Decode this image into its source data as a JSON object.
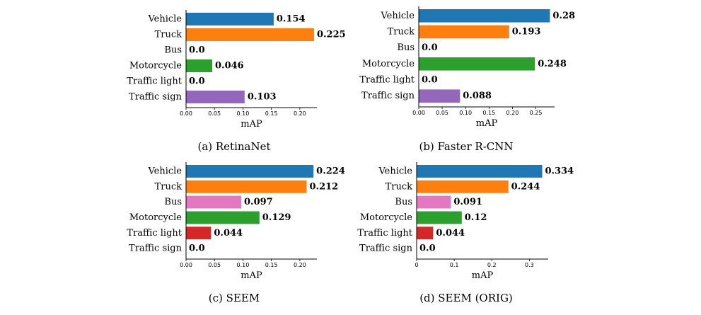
{
  "colors": {
    "vehicle": "#1f77b4",
    "truck": "#ff7f0e",
    "bus": "#e377c2",
    "motorcycle": "#2ca02c",
    "traffic_light": "#d62728",
    "traffic_sign": "#9467bd"
  },
  "chart_data": [
    {
      "type": "bar",
      "orientation": "horizontal",
      "caption": "(a) RetinaNet",
      "categories": [
        "Vehicle",
        "Truck",
        "Bus",
        "Motorcycle",
        "Traffic light",
        "Traffic sign"
      ],
      "values": [
        0.154,
        0.225,
        0.0,
        0.046,
        0.0,
        0.103
      ],
      "value_labels": [
        "0.154",
        "0.225",
        "0.0",
        "0.046",
        "0.0",
        "0.103"
      ],
      "xlabel": "mAP",
      "xlim": [
        0,
        0.23
      ],
      "xticks": [
        0.0,
        0.05,
        0.1,
        0.15,
        0.2
      ],
      "xtick_labels": [
        "0.00",
        "0.05",
        "0.10",
        "0.15",
        "0.20"
      ],
      "grid": false
    },
    {
      "type": "bar",
      "orientation": "horizontal",
      "caption": "(b) Faster R-CNN",
      "categories": [
        "Vehicle",
        "Truck",
        "Bus",
        "Motorcycle",
        "Traffic light",
        "Traffic sign"
      ],
      "values": [
        0.28,
        0.193,
        0.0,
        0.248,
        0.0,
        0.088
      ],
      "value_labels": [
        "0.28",
        "0.193",
        "0.0",
        "0.248",
        "0.0",
        "0.088"
      ],
      "xlabel": "mAP",
      "xlim": [
        0,
        0.29
      ],
      "xticks": [
        0.0,
        0.05,
        0.1,
        0.15,
        0.2,
        0.25
      ],
      "xtick_labels": [
        "0.00",
        "0.05",
        "0.10",
        "0.15",
        "0.20",
        "0.25"
      ],
      "grid": false
    },
    {
      "type": "bar",
      "orientation": "horizontal",
      "caption": "(c) SEEM",
      "categories": [
        "Vehicle",
        "Truck",
        "Bus",
        "Motorcycle",
        "Traffic light",
        "Traffic sign"
      ],
      "values": [
        0.224,
        0.212,
        0.097,
        0.129,
        0.044,
        0.0
      ],
      "value_labels": [
        "0.224",
        "0.212",
        "0.097",
        "0.129",
        "0.044",
        "0.0"
      ],
      "xlabel": "mAP",
      "xlim": [
        0,
        0.23
      ],
      "xticks": [
        0.0,
        0.05,
        0.1,
        0.15,
        0.2
      ],
      "xtick_labels": [
        "0.00",
        "0.05",
        "0.10",
        "0.15",
        "0.20"
      ],
      "grid": false
    },
    {
      "type": "bar",
      "orientation": "horizontal",
      "caption": "(d) SEEM (ORIG)",
      "categories": [
        "Vehicle",
        "Truck",
        "Bus",
        "Motorcycle",
        "Traffic light",
        "Traffic sign"
      ],
      "values": [
        0.334,
        0.244,
        0.091,
        0.12,
        0.044,
        0.0
      ],
      "value_labels": [
        "0.334",
        "0.244",
        "0.091",
        "0.12",
        "0.044",
        "0.0"
      ],
      "xlabel": "mAP",
      "xlim": [
        0,
        0.35
      ],
      "xticks": [
        0.0,
        0.1,
        0.2,
        0.3
      ],
      "xtick_labels": [
        "0",
        "0.1",
        "0.2",
        "0.3"
      ],
      "grid": false
    }
  ]
}
